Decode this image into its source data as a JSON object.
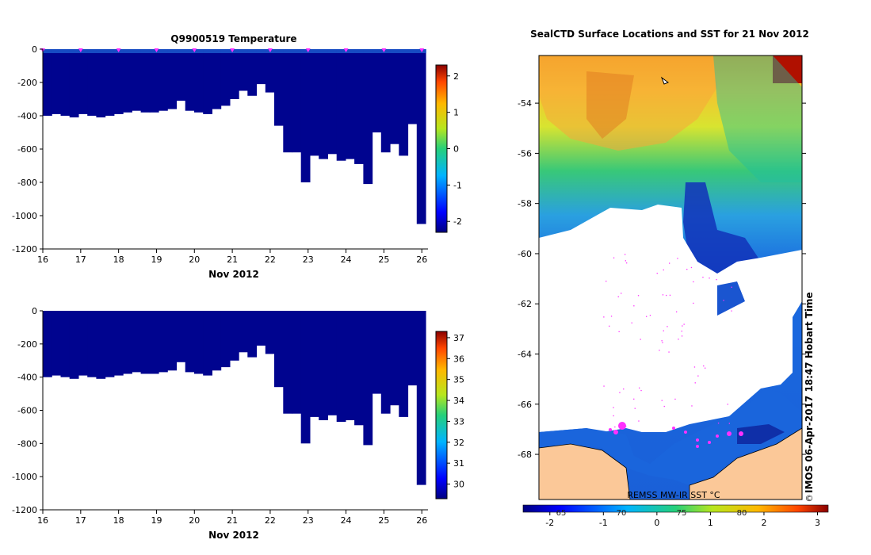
{
  "chart_data": [
    {
      "type": "heatmap",
      "variable": "Temperature",
      "title": "Q9900519  Temperature",
      "xlabel": "Nov 2012",
      "ylabel": "",
      "x_ticks": [
        "16",
        "17",
        "18",
        "19",
        "20",
        "21",
        "22",
        "23",
        "24",
        "25",
        "26"
      ],
      "y_ticks": [
        "0",
        "-200",
        "-400",
        "-600",
        "-800",
        "-1000",
        "-1200"
      ],
      "xlim": [
        16,
        26.1
      ],
      "ylim": [
        -1200,
        0
      ],
      "colorbar": {
        "ticks": [
          "-2",
          "-1",
          "0",
          "1",
          "2"
        ],
        "range": [
          -2.3,
          2.3
        ]
      },
      "profile_depths": [
        -400,
        -390,
        -400,
        -410,
        -390,
        -400,
        -410,
        -400,
        -390,
        -380,
        -370,
        -380,
        -380,
        -370,
        -360,
        -310,
        -370,
        -380,
        -390,
        -360,
        -340,
        -300,
        -250,
        -280,
        -210,
        -260,
        -460,
        -620,
        -620,
        -800,
        -640,
        -660,
        -630,
        -670,
        -660,
        -690,
        -810,
        -500,
        -620,
        -570,
        -640,
        -450,
        -1050
      ],
      "surface_stations_x": [
        16,
        17,
        18,
        19,
        20,
        21,
        22,
        23,
        24,
        25,
        26
      ],
      "dominant_value": -1.8
    },
    {
      "type": "heatmap",
      "variable": "Salinity",
      "title": "",
      "xlabel": "Nov 2012",
      "ylabel": "",
      "x_ticks": [
        "16",
        "17",
        "18",
        "19",
        "20",
        "21",
        "22",
        "23",
        "24",
        "25",
        "26"
      ],
      "y_ticks": [
        "0",
        "-200",
        "-400",
        "-600",
        "-800",
        "-1000",
        "-1200"
      ],
      "xlim": [
        16,
        26.1
      ],
      "ylim": [
        -1200,
        0
      ],
      "colorbar": {
        "ticks": [
          "30",
          "31",
          "32",
          "33",
          "34",
          "35",
          "36",
          "37"
        ],
        "range": [
          29.3,
          37.3
        ]
      },
      "profile_depths": [
        -400,
        -390,
        -400,
        -410,
        -390,
        -400,
        -410,
        -400,
        -390,
        -380,
        -370,
        -380,
        -380,
        -370,
        -360,
        -310,
        -370,
        -380,
        -390,
        -360,
        -340,
        -300,
        -250,
        -280,
        -210,
        -260,
        -460,
        -620,
        -620,
        -800,
        -640,
        -660,
        -630,
        -670,
        -660,
        -690,
        -810,
        -500,
        -620,
        -570,
        -640,
        -450,
        -1050
      ],
      "dominant_value": 29.5
    },
    {
      "type": "heatmap",
      "variable": "SST",
      "title": "SealCTD Surface Locations and SST for 21 Nov 2012",
      "y_ticks": [
        "-54",
        "-56",
        "-58",
        "-60",
        "-62",
        "-64",
        "-66",
        "-68"
      ],
      "ylim": [
        -69.8,
        -52.1
      ],
      "colorbar": {
        "ticks": [
          "-2",
          "-1",
          "0",
          "1",
          "2",
          "3"
        ],
        "range": [
          -2.5,
          3.2
        ],
        "label": "REMSS MW-IR SST °C",
        "overlay_labels": [
          "65",
          "70",
          "75",
          "80"
        ]
      },
      "side_label": "IMOS 06-Apr-2017 18:47 Hobart Time",
      "copyright": "©"
    }
  ]
}
